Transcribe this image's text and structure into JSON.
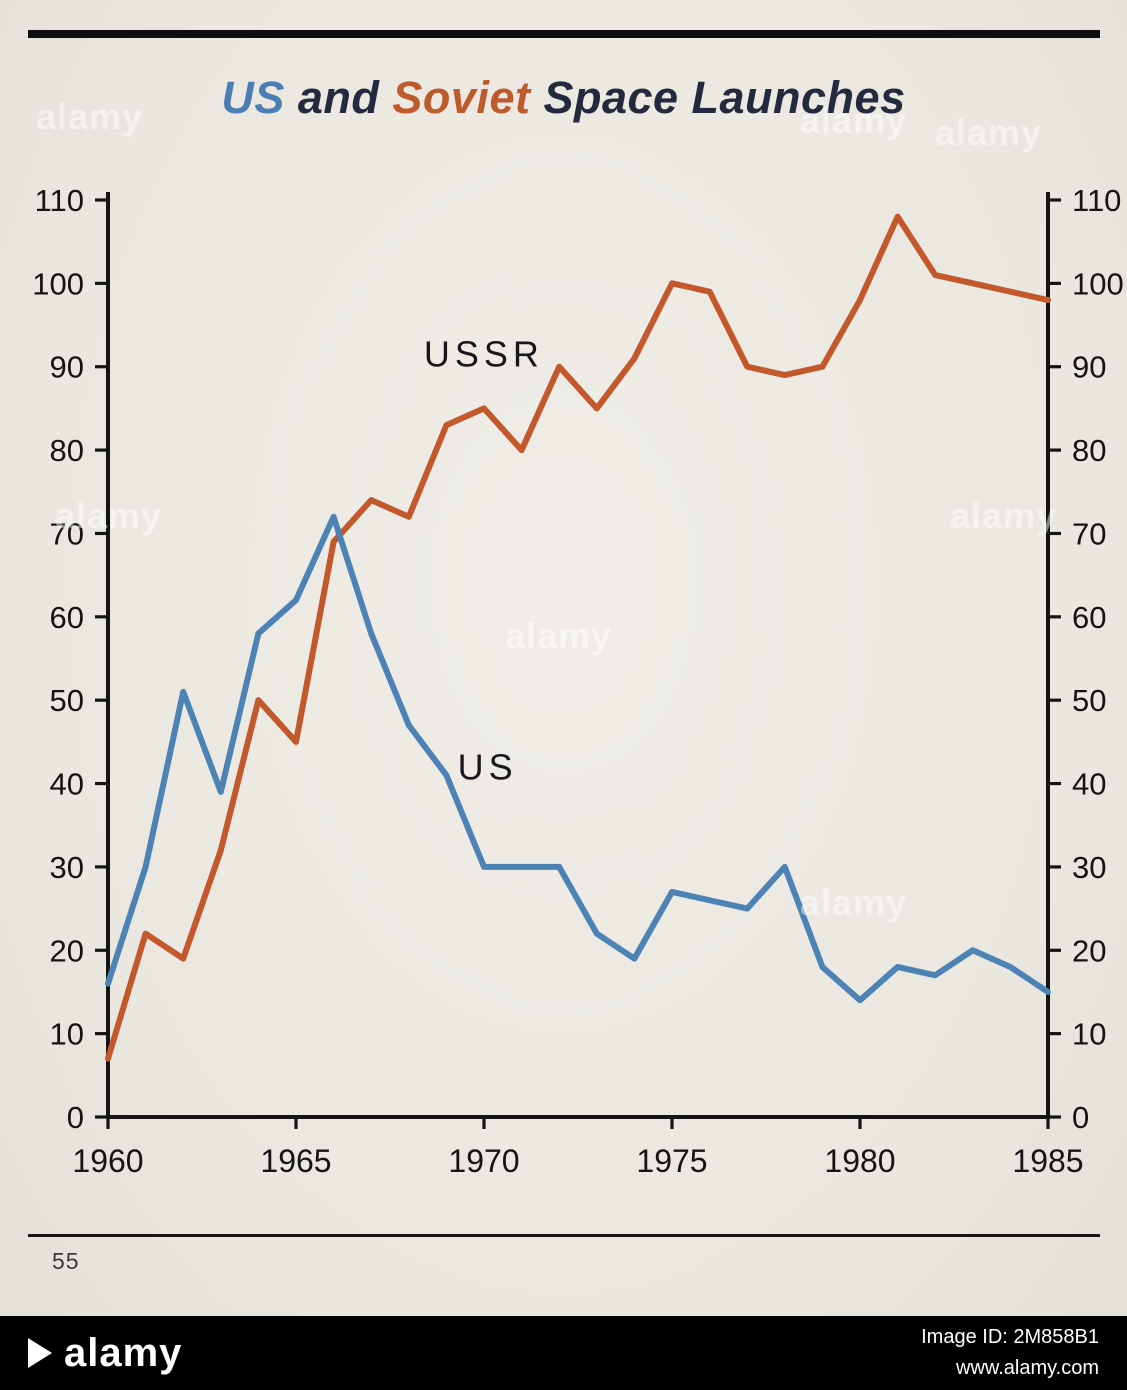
{
  "title": {
    "us": "US",
    "and": " and ",
    "soviet": "Soviet",
    "rest": " Space Launches"
  },
  "page_number": "55",
  "chart_data": {
    "type": "line",
    "title": "US and Soviet Space Launches",
    "xlabel": "",
    "ylabel": "",
    "xlim": [
      1960,
      1985
    ],
    "ylim": [
      0,
      110
    ],
    "grid": false,
    "legend": "inline-labels",
    "x_ticks": [
      1960,
      1965,
      1970,
      1975,
      1980,
      1985
    ],
    "y_ticks": [
      0,
      10,
      20,
      30,
      40,
      50,
      60,
      70,
      80,
      90,
      100,
      110
    ],
    "x": [
      1960,
      1961,
      1962,
      1963,
      1964,
      1965,
      1966,
      1967,
      1968,
      1969,
      1970,
      1971,
      1972,
      1973,
      1974,
      1975,
      1976,
      1977,
      1978,
      1979,
      1980,
      1981,
      1982,
      1983,
      1984,
      1985
    ],
    "series": [
      {
        "name": "USSR",
        "color": "#c2582c",
        "values": [
          7,
          22,
          19,
          32,
          50,
          45,
          69,
          74,
          72,
          83,
          85,
          80,
          90,
          85,
          91,
          100,
          99,
          90,
          89,
          90,
          98,
          108,
          101,
          100,
          99,
          98
        ]
      },
      {
        "name": "US",
        "color": "#4d82b5",
        "values": [
          16,
          30,
          51,
          39,
          58,
          62,
          72,
          58,
          47,
          41,
          30,
          30,
          30,
          22,
          19,
          27,
          26,
          25,
          30,
          18,
          14,
          18,
          17,
          20,
          18,
          15
        ]
      }
    ]
  },
  "watermark": {
    "text": "alamy"
  },
  "footer": {
    "logo_text": "alamy",
    "image_id": "Image ID: 2M858B1",
    "url": "www.alamy.com"
  }
}
